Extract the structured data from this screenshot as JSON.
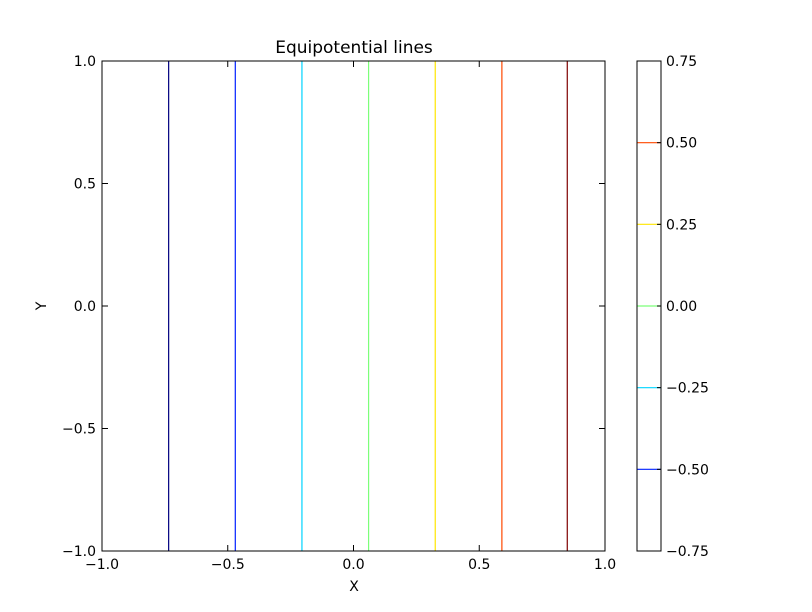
{
  "chart_data": {
    "type": "line",
    "title": "Equipotential lines",
    "xlabel": "X",
    "ylabel": "Y",
    "xlim": [
      -1.0,
      1.0
    ],
    "ylim": [
      -1.0,
      1.0
    ],
    "x_ticks": [
      -1.0,
      -0.5,
      0.0,
      0.5,
      1.0
    ],
    "x_tick_labels": [
      "−1.0",
      "−0.5",
      "0.0",
      "0.5",
      "1.0"
    ],
    "y_ticks": [
      -1.0,
      -0.5,
      0.0,
      0.5,
      1.0
    ],
    "y_tick_labels": [
      "−1.0",
      "−0.5",
      "0.0",
      "0.5",
      "1.0"
    ],
    "grid": false,
    "series": [
      {
        "level": -0.75,
        "x": -0.735,
        "color": "#00007f"
      },
      {
        "level": -0.5,
        "x": -0.47,
        "color": "#0020ff"
      },
      {
        "level": -0.25,
        "x": -0.205,
        "color": "#00d4ff"
      },
      {
        "level": 0.0,
        "x": 0.06,
        "color": "#7cff79"
      },
      {
        "level": 0.25,
        "x": 0.325,
        "color": "#ffe600"
      },
      {
        "level": 0.5,
        "x": 0.59,
        "color": "#ff4800"
      },
      {
        "level": 0.75,
        "x": 0.85,
        "color": "#7f0000"
      }
    ],
    "colorbar": {
      "range": [
        -0.75,
        0.75
      ],
      "ticks": [
        -0.75,
        -0.5,
        -0.25,
        0.0,
        0.25,
        0.5,
        0.75
      ],
      "tick_labels": [
        "−0.75",
        "−0.50",
        "−0.25",
        "0.00",
        "0.25",
        "0.50",
        "0.75"
      ],
      "line_colors": [
        "#0020ff",
        "#00d4ff",
        "#7cff79",
        "#ffe600",
        "#ff4800"
      ],
      "line_levels": [
        -0.5,
        -0.25,
        0.0,
        0.25,
        0.5
      ]
    }
  }
}
